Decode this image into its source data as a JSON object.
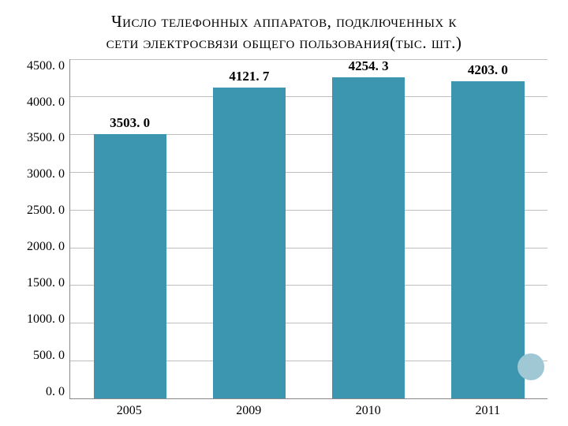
{
  "title_line1": "Число телефонных аппаратов, подключенных к",
  "title_line2": "сети электросвязи общего пользования",
  "title_unit": "(тыс. шт.)",
  "chart": {
    "type": "bar",
    "categories": [
      "2005",
      "2009",
      "2010",
      "2011"
    ],
    "values": [
      3503.0,
      4121.7,
      4254.3,
      4203.0
    ],
    "value_labels": [
      "3503. 0",
      "4121. 7",
      "4254. 3",
      "4203. 0"
    ],
    "bar_color": "#3d96af",
    "ylim": [
      0,
      4500
    ],
    "ytick_step": 500,
    "yticks": [
      "4500. 0",
      "4000. 0",
      "3500. 0",
      "3000. 0",
      "2500. 0",
      "2000. 0",
      "1500. 0",
      "1000. 0",
      "500. 0",
      "0. 0"
    ],
    "grid_color": "#bfbfbf",
    "background_color": "#ffffff",
    "label_fontsize": 17,
    "tick_fontsize": 16,
    "bar_width": 0.61,
    "marker_color": "#a0c8d4"
  }
}
